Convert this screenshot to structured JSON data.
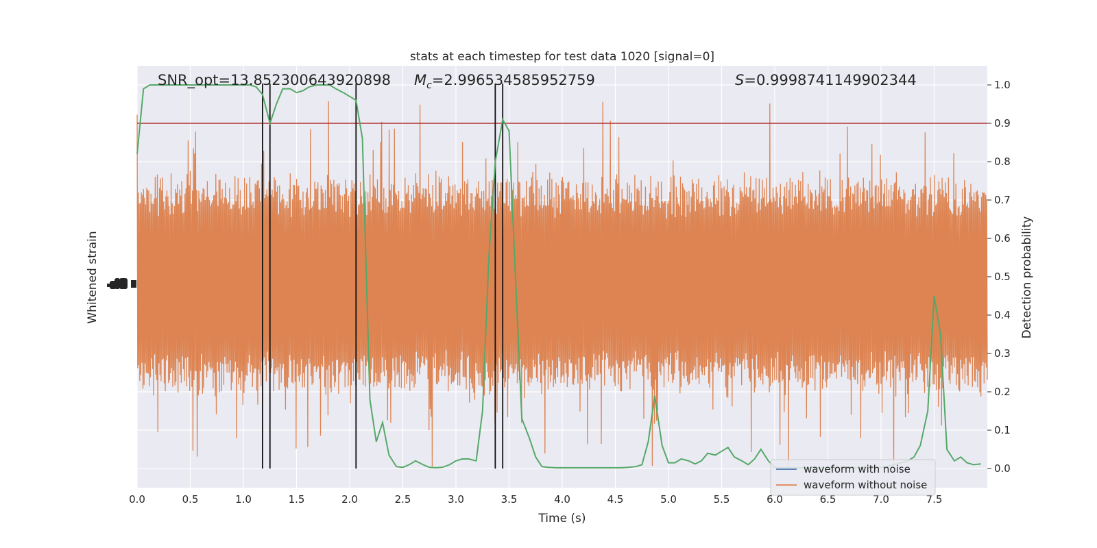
{
  "chart_data": {
    "type": "line",
    "title": "stats at each timestep for test data 1020 [signal=0]",
    "xlabel": "Time (s)",
    "ylabel_left": "Whitened strain",
    "ylabel_right": "Detection probability",
    "xlim": [
      0,
      8
    ],
    "ylim_right": [
      -0.05,
      1.05
    ],
    "x_ticks": [
      "0.0",
      "0.5",
      "1.0",
      "1.5",
      "2.0",
      "2.5",
      "3.0",
      "3.5",
      "4.0",
      "4.5",
      "5.0",
      "5.5",
      "6.0",
      "6.5",
      "7.0",
      "7.5"
    ],
    "y_ticks_right": [
      "0.0",
      "0.1",
      "0.2",
      "0.3",
      "0.4",
      "0.5",
      "0.6",
      "0.7",
      "0.8",
      "0.9",
      "1.0"
    ],
    "grid": true,
    "annotations": {
      "snr": "SNR_opt=13.852300643920898",
      "mc_symbol": "M",
      "mc_sub": "c",
      "mc_value": "=2.996534585952759",
      "s_symbol": "S",
      "s_value": "=0.9998741149902344"
    },
    "threshold": 0.9,
    "vertical_markers": [
      1.18,
      1.25,
      2.06,
      3.37,
      3.44
    ],
    "legend": {
      "position": "lower-right",
      "entries": [
        {
          "label": "waveform with noise",
          "color": "#4c72b0"
        },
        {
          "label": "waveform without noise",
          "color": "#dd8452"
        }
      ]
    },
    "series": [
      {
        "role": "waveform with noise",
        "color": "#4c72b0",
        "note": "hidden beneath orange trace"
      },
      {
        "role": "waveform without noise",
        "color": "#dd8452",
        "center": 0.48,
        "envelope": [
          0.0,
          1.0
        ]
      },
      {
        "role": "detection probability",
        "color": "#55a868",
        "x": [
          0.0,
          0.06,
          0.12,
          0.19,
          0.25,
          0.31,
          0.37,
          0.44,
          0.5,
          0.56,
          0.62,
          0.69,
          0.75,
          0.81,
          0.87,
          0.94,
          1.0,
          1.06,
          1.12,
          1.18,
          1.25,
          1.31,
          1.37,
          1.44,
          1.5,
          1.56,
          1.62,
          1.69,
          1.75,
          1.81,
          1.87,
          1.94,
          2.0,
          2.06,
          2.12,
          2.19,
          2.25,
          2.31,
          2.37,
          2.44,
          2.5,
          2.56,
          2.62,
          2.69,
          2.75,
          2.81,
          2.87,
          2.94,
          3.0,
          3.06,
          3.12,
          3.19,
          3.25,
          3.31,
          3.37,
          3.44,
          3.5,
          3.56,
          3.62,
          3.69,
          3.75,
          3.81,
          3.87,
          3.94,
          4.0,
          4.06,
          4.12,
          4.19,
          4.25,
          4.31,
          4.37,
          4.44,
          4.5,
          4.56,
          4.62,
          4.69,
          4.75,
          4.81,
          4.87,
          4.94,
          5.0,
          5.06,
          5.12,
          5.19,
          5.25,
          5.31,
          5.37,
          5.44,
          5.5,
          5.56,
          5.62,
          5.69,
          5.75,
          5.81,
          5.87,
          5.94,
          6.0,
          6.06,
          6.12,
          6.19,
          6.25,
          6.31,
          6.37,
          6.44,
          6.5,
          6.56,
          6.62,
          6.69,
          6.75,
          6.81,
          6.87,
          6.94,
          7.0,
          7.06,
          7.12,
          7.19,
          7.25,
          7.31,
          7.37,
          7.44,
          7.5,
          7.56,
          7.62,
          7.69,
          7.75,
          7.81,
          7.87,
          7.94
        ],
        "values": [
          0.82,
          0.99,
          1.0,
          1.0,
          1.0,
          1.0,
          1.0,
          1.0,
          1.0,
          1.0,
          1.0,
          1.0,
          1.0,
          1.0,
          1.0,
          1.0,
          1.0,
          1.0,
          0.995,
          0.975,
          0.9,
          0.95,
          0.99,
          0.99,
          0.98,
          0.985,
          0.995,
          1.0,
          1.0,
          1.0,
          0.99,
          0.98,
          0.97,
          0.96,
          0.86,
          0.18,
          0.07,
          0.12,
          0.035,
          0.005,
          0.003,
          0.01,
          0.02,
          0.01,
          0.003,
          0.002,
          0.003,
          0.01,
          0.02,
          0.025,
          0.025,
          0.02,
          0.15,
          0.55,
          0.8,
          0.91,
          0.88,
          0.5,
          0.13,
          0.08,
          0.03,
          0.005,
          0.003,
          0.002,
          0.002,
          0.002,
          0.002,
          0.002,
          0.002,
          0.002,
          0.002,
          0.002,
          0.002,
          0.002,
          0.003,
          0.005,
          0.01,
          0.07,
          0.19,
          0.06,
          0.015,
          0.015,
          0.025,
          0.02,
          0.012,
          0.02,
          0.04,
          0.035,
          0.045,
          0.055,
          0.03,
          0.02,
          0.01,
          0.025,
          0.05,
          0.02,
          0.003,
          0.002,
          0.002,
          0.002,
          0.002,
          0.002,
          0.002,
          0.002,
          0.002,
          0.002,
          0.002,
          0.002,
          0.002,
          0.002,
          0.002,
          0.002,
          0.003,
          0.005,
          0.01,
          0.015,
          0.02,
          0.03,
          0.06,
          0.15,
          0.45,
          0.35,
          0.05,
          0.02,
          0.03,
          0.015,
          0.01,
          0.012
        ]
      }
    ]
  }
}
